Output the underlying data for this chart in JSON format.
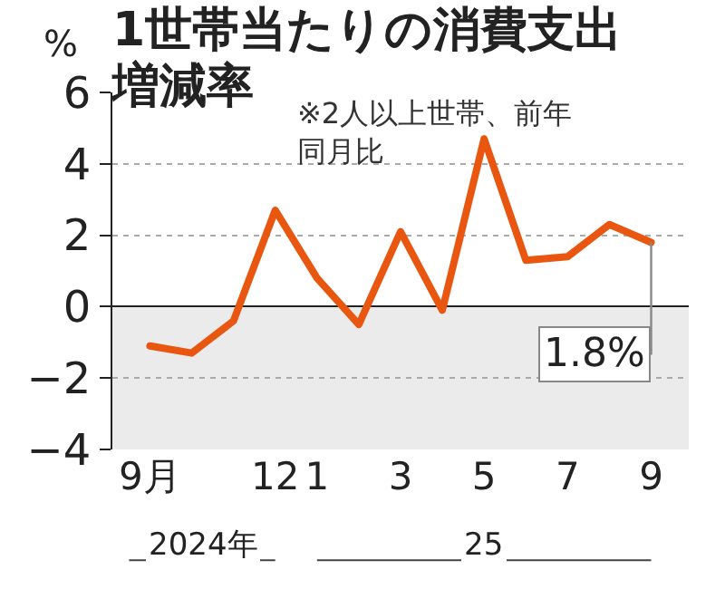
{
  "chart_data": {
    "type": "line",
    "title": "1世帯当たりの消費支出増減率",
    "ylabel": "%",
    "categories": [
      "9月",
      null,
      null,
      "12",
      "1",
      null,
      "3",
      null,
      "5",
      null,
      "7",
      null,
      "9"
    ],
    "series": [
      {
        "color": "#e8560f",
        "values": [
          -1.1,
          -1.3,
          -0.4,
          2.7,
          0.8,
          -0.5,
          2.1,
          -0.1,
          4.7,
          1.3,
          1.4,
          2.3,
          1.8
        ]
      }
    ],
    "ylim": [
      -4,
      6
    ],
    "yticks": [
      -4,
      -2,
      0,
      2,
      4,
      6
    ],
    "grid": "y",
    "marker": "none",
    "line_style": "solid",
    "bands": [
      {
        "axis": "y",
        "from": -4,
        "to": 0,
        "color": "#ebebeb"
      }
    ],
    "annotations": [
      "※2人以上世帯、前年同月比",
      "2024年",
      "25",
      {
        "text": "1.8%",
        "x": "9",
        "y": 1.8
      }
    ]
  }
}
